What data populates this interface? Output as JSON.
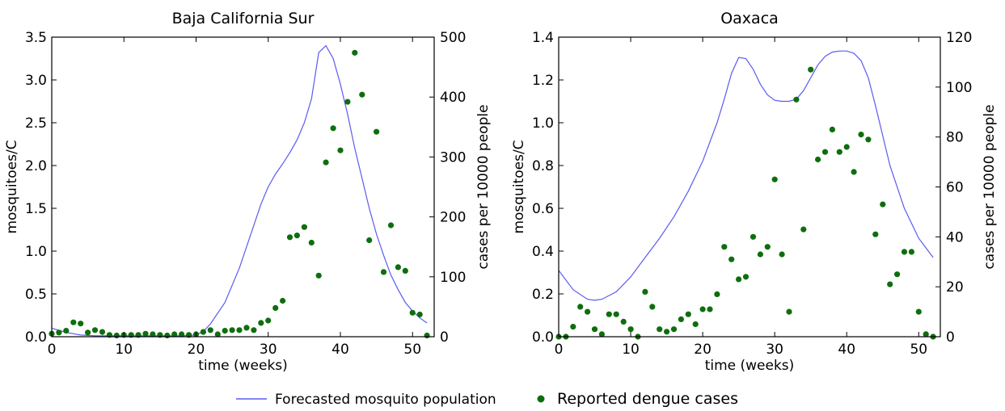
{
  "colors": {
    "mosquito_line": "#5b5bf0",
    "dengue_points": "#0e6e0e",
    "axis": "#000000"
  },
  "legend": {
    "mosquito_label": "Forecasted mosquito population",
    "dengue_label": "Reported dengue cases"
  },
  "chart_data": [
    {
      "type": "line",
      "title": "Baja California Sur",
      "xlabel": "time (weeks)",
      "ylabel": "mosquitoes/C",
      "y2label": "cases per 10000 people",
      "xlim": [
        0,
        53
      ],
      "ylim": [
        0,
        3.5
      ],
      "y2lim": [
        0,
        500
      ],
      "x_ticks": [
        0,
        10,
        20,
        30,
        40,
        50
      ],
      "x_tick_labels": [
        "0",
        "10",
        "20",
        "30",
        "40",
        "50"
      ],
      "y_ticks": [
        0,
        0.5,
        1,
        1.5,
        2,
        2.5,
        3,
        3.5
      ],
      "y_tick_labels": [
        "0.0",
        "0.5",
        "1.0",
        "1.5",
        "2.0",
        "2.5",
        "3.0",
        "3.5"
      ],
      "y2_ticks": [
        0,
        100,
        200,
        300,
        400,
        500
      ],
      "y2_tick_labels": [
        "0",
        "100",
        "200",
        "300",
        "400",
        "500"
      ],
      "series": [
        {
          "name": "Forecasted mosquito population",
          "kind": "line",
          "axis": "left",
          "x": [
            0,
            2,
            4,
            6,
            8,
            10,
            12,
            14,
            16,
            18,
            20,
            21,
            22,
            24,
            26,
            28,
            29,
            30,
            31,
            32,
            33,
            34,
            35,
            36,
            37,
            38,
            39,
            40,
            41,
            42,
            43,
            44,
            45,
            46,
            47,
            48,
            49,
            50,
            51,
            52
          ],
          "y": [
            0.1,
            0.05,
            0.02,
            0.01,
            0.01,
            0.01,
            0.01,
            0.01,
            0.01,
            0.01,
            0.02,
            0.06,
            0.15,
            0.4,
            0.8,
            1.3,
            1.55,
            1.75,
            1.9,
            2.02,
            2.15,
            2.3,
            2.5,
            2.78,
            3.32,
            3.4,
            3.25,
            2.95,
            2.6,
            2.2,
            1.85,
            1.5,
            1.2,
            0.95,
            0.72,
            0.55,
            0.4,
            0.3,
            0.22,
            0.16
          ]
        },
        {
          "name": "Reported dengue cases",
          "kind": "scatter",
          "axis": "right",
          "x": [
            0,
            1,
            2,
            3,
            4,
            5,
            6,
            7,
            8,
            9,
            10,
            11,
            12,
            13,
            14,
            15,
            16,
            17,
            18,
            19,
            20,
            21,
            22,
            23,
            24,
            25,
            26,
            27,
            28,
            29,
            30,
            31,
            32,
            33,
            34,
            35,
            36,
            37,
            38,
            39,
            40,
            41,
            42,
            43,
            44,
            45,
            46,
            47,
            48,
            49,
            50,
            51,
            52
          ],
          "y": [
            5,
            7,
            10,
            24,
            22,
            7,
            11,
            8,
            3,
            2,
            3,
            3,
            3,
            5,
            4,
            3,
            2,
            4,
            4,
            3,
            4,
            8,
            11,
            4,
            10,
            11,
            11,
            15,
            11,
            23,
            27,
            48,
            60,
            166,
            169,
            183,
            157,
            102,
            291,
            348,
            311,
            392,
            474,
            404,
            161,
            342,
            108,
            186,
            116,
            110,
            40,
            37,
            2
          ]
        }
      ]
    },
    {
      "type": "line",
      "title": "Oaxaca",
      "xlabel": "time (weeks)",
      "ylabel": "mosquitoes/C",
      "y2label": "cases per 10000 people",
      "xlim": [
        0,
        53
      ],
      "ylim": [
        0,
        1.4
      ],
      "y2lim": [
        0,
        120
      ],
      "x_ticks": [
        0,
        10,
        20,
        30,
        40,
        50
      ],
      "x_tick_labels": [
        "0",
        "10",
        "20",
        "30",
        "40",
        "50"
      ],
      "y_ticks": [
        0,
        0.2,
        0.4,
        0.6,
        0.8,
        1,
        1.2,
        1.4
      ],
      "y_tick_labels": [
        "0.0",
        "0.2",
        "0.4",
        "0.6",
        "0.8",
        "1.0",
        "1.2",
        "1.4"
      ],
      "y2_ticks": [
        0,
        20,
        40,
        60,
        80,
        100,
        120
      ],
      "y2_tick_labels": [
        "0",
        "20",
        "40",
        "60",
        "80",
        "100",
        "120"
      ],
      "series": [
        {
          "name": "Forecasted mosquito population",
          "kind": "line",
          "axis": "left",
          "x": [
            0,
            2,
            4,
            5,
            6,
            8,
            10,
            12,
            14,
            16,
            18,
            20,
            22,
            23,
            24,
            25,
            26,
            27,
            28,
            29,
            30,
            31,
            32,
            33,
            34,
            35,
            36,
            37,
            38,
            39,
            40,
            41,
            42,
            43,
            44,
            46,
            48,
            50,
            52
          ],
          "y": [
            0.31,
            0.22,
            0.175,
            0.17,
            0.175,
            0.21,
            0.28,
            0.37,
            0.46,
            0.56,
            0.68,
            0.82,
            1.0,
            1.11,
            1.23,
            1.305,
            1.3,
            1.25,
            1.18,
            1.13,
            1.105,
            1.1,
            1.1,
            1.11,
            1.15,
            1.21,
            1.27,
            1.31,
            1.33,
            1.335,
            1.335,
            1.325,
            1.29,
            1.21,
            1.08,
            0.8,
            0.6,
            0.46,
            0.37
          ]
        },
        {
          "name": "Reported dengue cases",
          "kind": "scatter",
          "axis": "right",
          "x": [
            0,
            1,
            2,
            3,
            4,
            5,
            6,
            7,
            8,
            9,
            10,
            11,
            12,
            13,
            14,
            15,
            16,
            17,
            18,
            19,
            20,
            21,
            22,
            23,
            24,
            25,
            26,
            27,
            28,
            29,
            30,
            31,
            32,
            33,
            34,
            35,
            36,
            37,
            38,
            39,
            40,
            41,
            42,
            43,
            44,
            45,
            46,
            47,
            48,
            49,
            50,
            51,
            52
          ],
          "y": [
            0,
            0,
            4,
            12,
            10,
            3,
            1,
            9,
            9,
            6,
            3,
            0,
            18,
            12,
            3,
            2,
            3,
            7,
            9,
            5,
            11,
            11,
            17,
            36,
            31,
            23,
            24,
            40,
            33,
            36,
            63,
            33,
            10,
            95,
            43,
            107,
            71,
            74,
            83,
            74,
            76,
            66,
            81,
            79,
            41,
            53,
            21,
            25,
            34,
            34,
            10,
            1,
            0
          ]
        }
      ]
    }
  ]
}
